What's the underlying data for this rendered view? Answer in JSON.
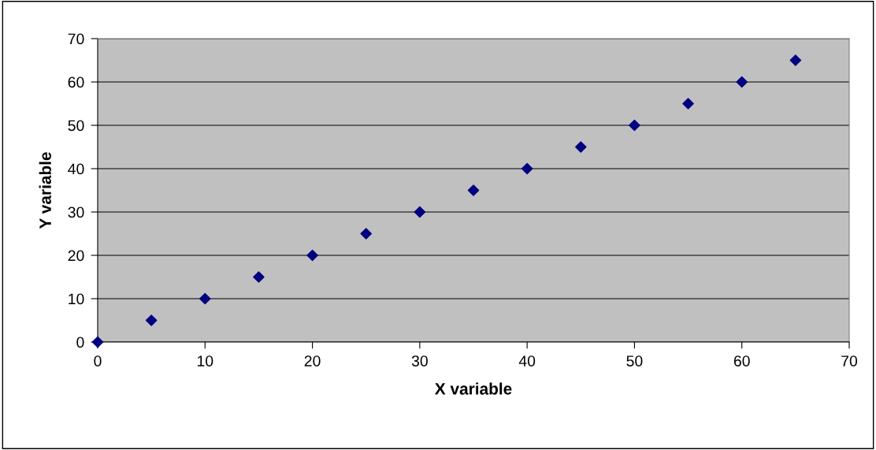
{
  "chart_data": {
    "type": "scatter",
    "xlabel": "X variable",
    "ylabel": "Y variable",
    "x": [
      0,
      5,
      10,
      15,
      20,
      25,
      30,
      35,
      40,
      45,
      50,
      55,
      60,
      65
    ],
    "series": [
      {
        "color": "#000080",
        "values": [
          0,
          5,
          10,
          15,
          20,
          25,
          30,
          35,
          40,
          45,
          50,
          55,
          60,
          65
        ]
      }
    ],
    "xlim": [
      0,
      70
    ],
    "ylim": [
      0,
      70
    ],
    "xticks": [
      0,
      10,
      20,
      30,
      40,
      50,
      60,
      70
    ],
    "yticks": [
      0,
      10,
      20,
      30,
      40,
      50,
      60,
      70
    ],
    "grid": "y",
    "marker": "diamond",
    "legend": false
  }
}
